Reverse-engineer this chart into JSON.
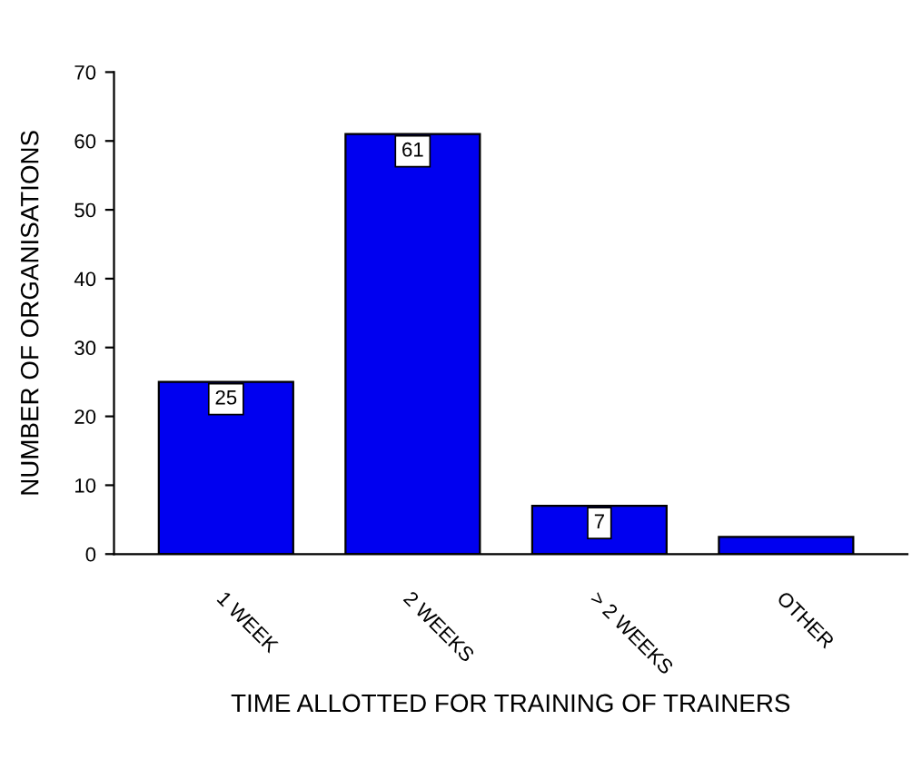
{
  "chart_data": {
    "type": "bar",
    "xlabel": "TIME ALLOTTED FOR TRAINING OF TRAINERS",
    "ylabel": "NUMBER OF ORGANISATIONS",
    "categories": [
      "1 WEEK",
      "2 WEEKS",
      "> 2 WEEKS",
      "OTHER"
    ],
    "values": [
      25,
      61,
      7,
      2.5
    ],
    "value_labels": [
      "25",
      "61",
      "7",
      null
    ],
    "color": "#0000f0",
    "ylim": [
      0,
      70
    ],
    "yticks": [
      0,
      10,
      20,
      30,
      40,
      50,
      60,
      70
    ],
    "grid": false,
    "legend": false
  }
}
